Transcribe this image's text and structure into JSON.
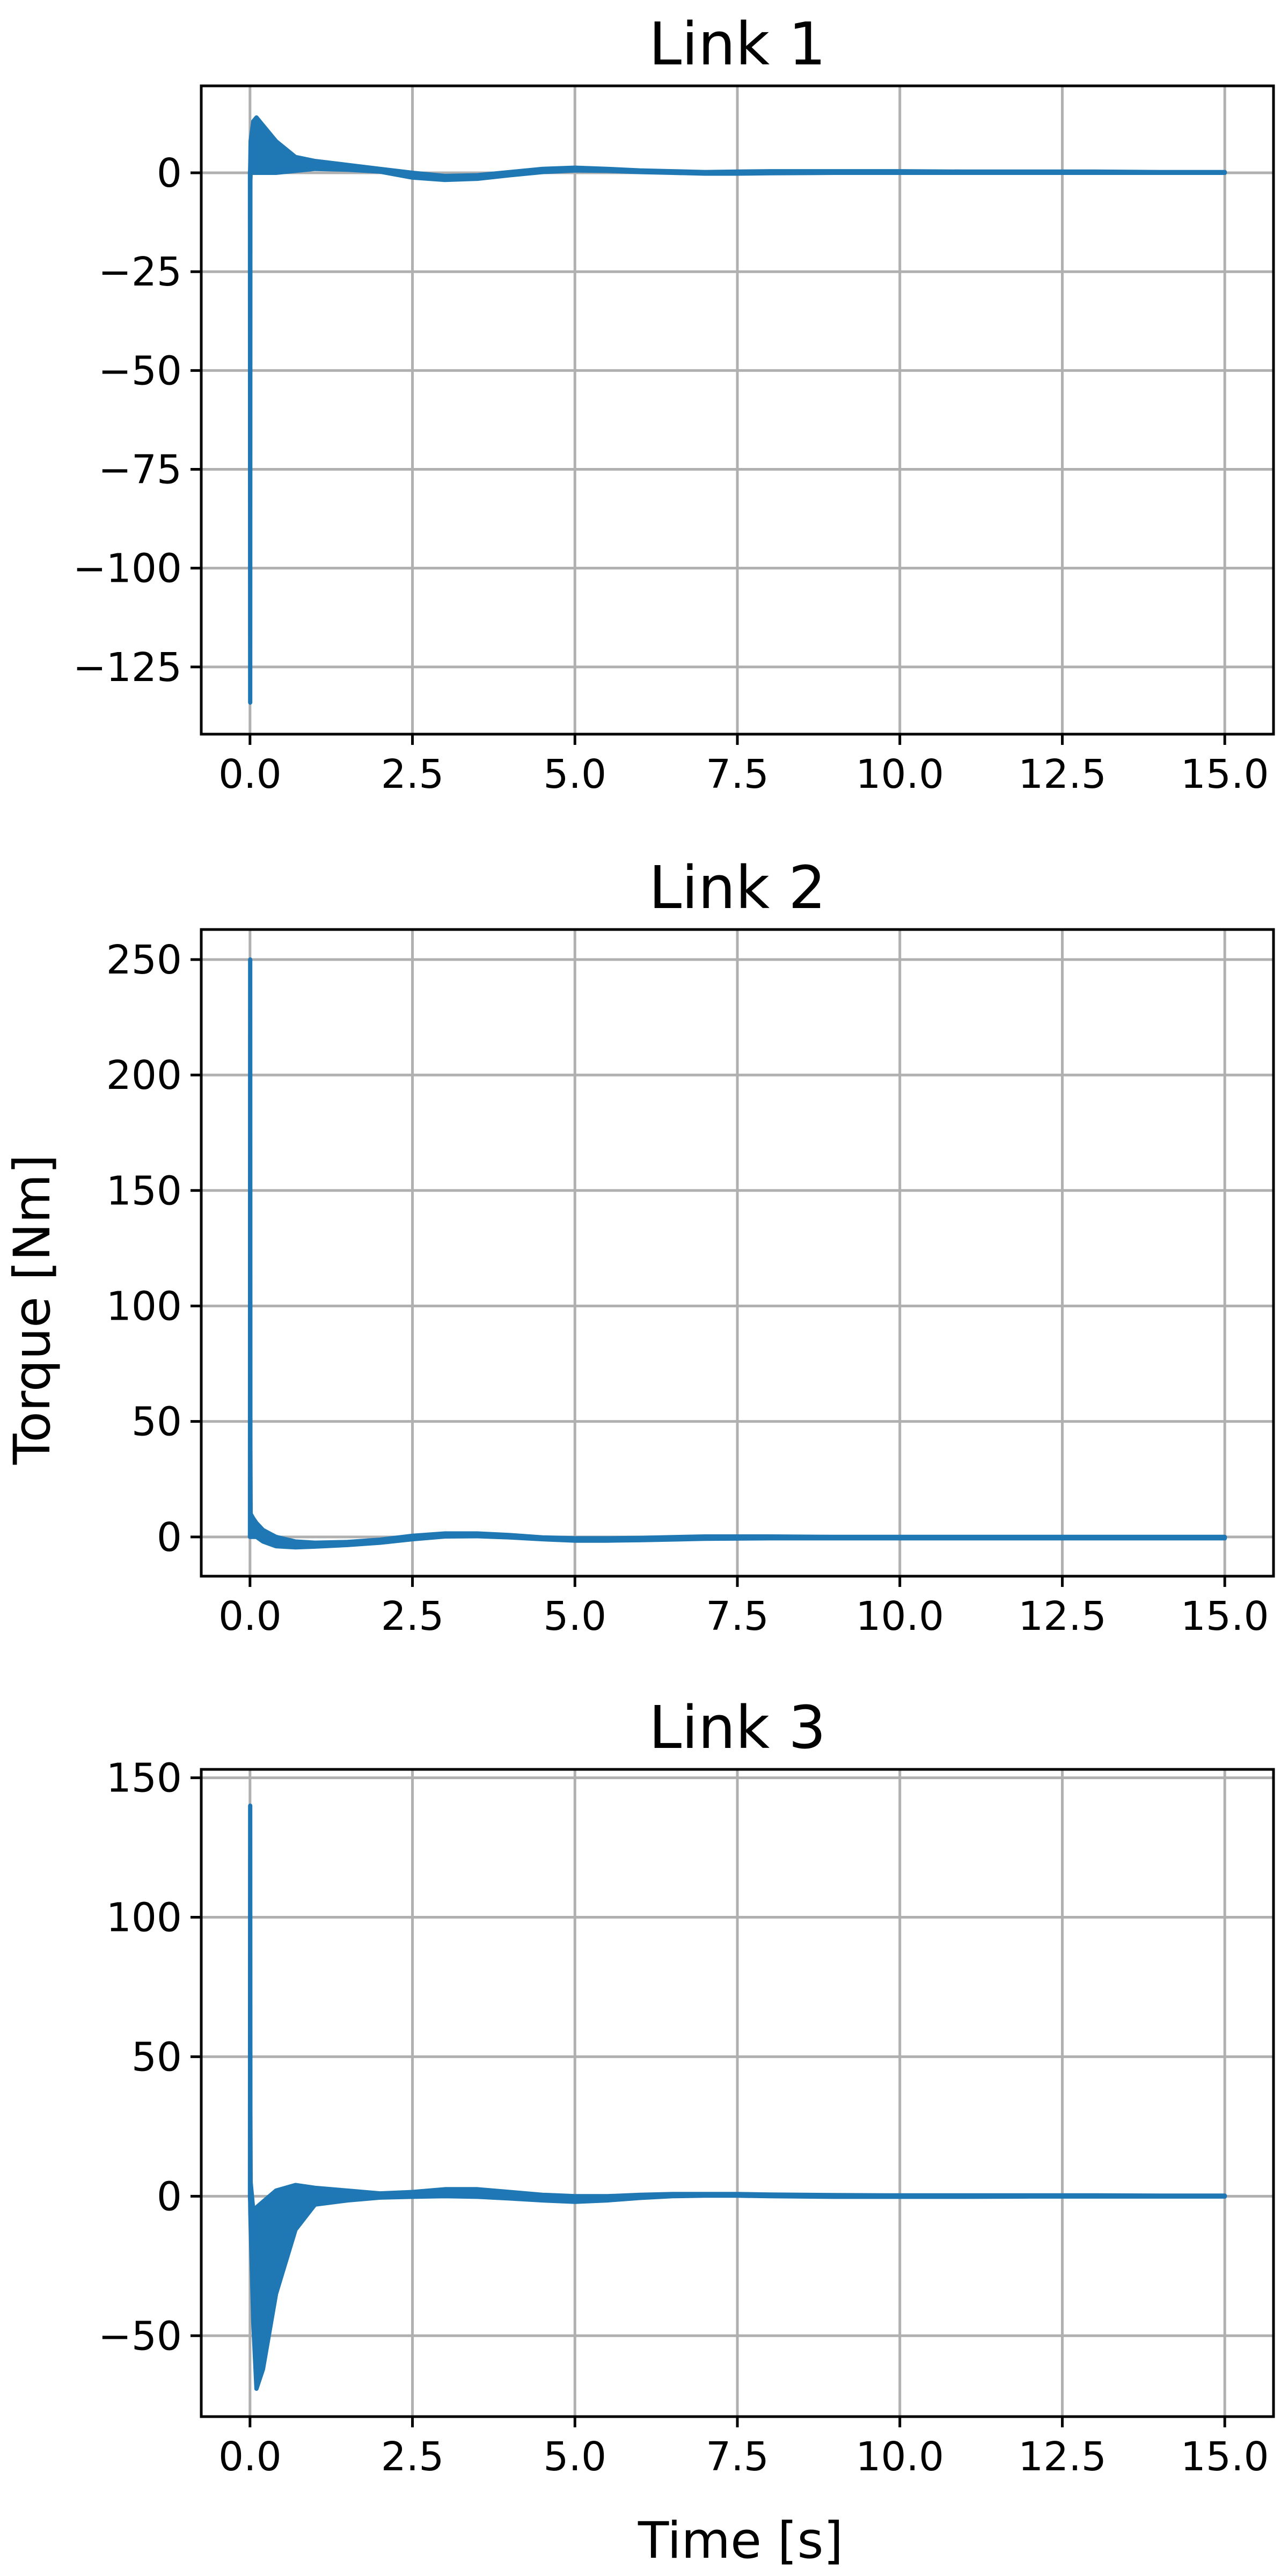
{
  "figure": {
    "xlabel": "Time [s]",
    "ylabel": "Torque [Nm]"
  },
  "chart_data": [
    {
      "type": "line",
      "title": "Link 1",
      "xlabel": "",
      "ylabel": "",
      "color": "#1f77b4",
      "grid": true,
      "xlim": [
        -0.75,
        15.75
      ],
      "ylim": [
        -142,
        22
      ],
      "xticks": [
        "0.0",
        "2.5",
        "5.0",
        "7.5",
        "10.0",
        "12.5",
        "15.0"
      ],
      "yticks": [
        "0",
        "−25",
        "−50",
        "−75",
        "−100",
        "−125"
      ],
      "series": [
        {
          "x": [
            0.0,
            0.003,
            0.006,
            0.01,
            0.05,
            0.1,
            0.2,
            0.4,
            0.7,
            1.0,
            1.5,
            2.0,
            2.5,
            3.0,
            3.5,
            4.0,
            4.5,
            5.0,
            5.5,
            6.0,
            6.5,
            7.0,
            7.5,
            8.0,
            9.0,
            10.0,
            11.0,
            12.0,
            13.0,
            14.0,
            15.0
          ],
          "upper": [
            0,
            1,
            3,
            8,
            13,
            14,
            12,
            8,
            4,
            3,
            2,
            1,
            0,
            -0.8,
            -0.6,
            0.2,
            1.0,
            1.3,
            1.0,
            0.6,
            0.4,
            0.2,
            0.3,
            0.4,
            0.4,
            0.4,
            0.3,
            0.3,
            0.3,
            0.2,
            0.2
          ],
          "lower": [
            0,
            -134,
            -2,
            0,
            0,
            0,
            0,
            0,
            0.5,
            1,
            0.8,
            0.3,
            -1.2,
            -1.8,
            -1.5,
            -0.6,
            0.2,
            0.6,
            0.5,
            0.2,
            0.0,
            -0.2,
            -0.2,
            -0.1,
            0.0,
            0.0,
            0.0,
            0.0,
            0.0,
            0.0,
            0.0
          ]
        }
      ]
    },
    {
      "type": "line",
      "title": "Link 2",
      "xlabel": "",
      "ylabel": "",
      "color": "#1f77b4",
      "grid": true,
      "xlim": [
        -0.75,
        15.75
      ],
      "ylim": [
        -17,
        263
      ],
      "xticks": [
        "0.0",
        "2.5",
        "5.0",
        "7.5",
        "10.0",
        "12.5",
        "15.0"
      ],
      "yticks": [
        "0",
        "50",
        "100",
        "150",
        "200",
        "250"
      ],
      "series": [
        {
          "x": [
            0.0,
            0.003,
            0.006,
            0.01,
            0.05,
            0.1,
            0.2,
            0.4,
            0.7,
            1.0,
            1.5,
            2.0,
            2.5,
            3.0,
            3.5,
            4.0,
            4.5,
            5.0,
            5.5,
            6.0,
            7.0,
            8.0,
            9.0,
            10.0,
            11.0,
            12.0,
            13.0,
            14.0,
            15.0
          ],
          "upper": [
            0,
            250,
            40,
            10,
            8,
            6,
            3,
            0,
            -2,
            -2.5,
            -2.2,
            -1.2,
            0.5,
            1.5,
            1.5,
            0.8,
            -0.2,
            -0.6,
            -0.6,
            -0.4,
            0.2,
            0.2,
            0.0,
            0.0,
            0.0,
            0.0,
            0.0,
            0.0,
            0.0
          ],
          "lower": [
            0,
            0,
            0,
            0,
            0,
            0,
            -2,
            -4,
            -4.5,
            -4.2,
            -3.5,
            -2.5,
            -1,
            0.2,
            0.3,
            -0.2,
            -1.0,
            -1.6,
            -1.6,
            -1.4,
            -0.8,
            -0.6,
            -0.6,
            -0.6,
            -0.6,
            -0.6,
            -0.6,
            -0.6,
            -0.6
          ]
        }
      ]
    },
    {
      "type": "line",
      "title": "Link 3",
      "xlabel": "Time [s]",
      "ylabel": "",
      "color": "#1f77b4",
      "grid": true,
      "xlim": [
        -0.75,
        15.75
      ],
      "ylim": [
        -79,
        153
      ],
      "xticks": [
        "0.0",
        "2.5",
        "5.0",
        "7.5",
        "10.0",
        "12.5",
        "15.0"
      ],
      "yticks": [
        "−50",
        "0",
        "50",
        "100",
        "150"
      ],
      "series": [
        {
          "x": [
            0.0,
            0.003,
            0.006,
            0.01,
            0.05,
            0.1,
            0.2,
            0.4,
            0.7,
            1.0,
            1.5,
            2.0,
            2.5,
            3.0,
            3.5,
            4.0,
            4.5,
            5.0,
            5.5,
            6.0,
            6.5,
            7.0,
            7.5,
            8.0,
            9.0,
            10.0,
            11.0,
            12.0,
            13.0,
            14.0,
            15.0
          ],
          "upper": [
            0,
            140,
            30,
            5,
            -5,
            -4,
            -2,
            2,
            4,
            3,
            2,
            1,
            1.5,
            2.5,
            2.5,
            1.5,
            0.5,
            0.0,
            0.0,
            0.5,
            0.8,
            0.8,
            0.8,
            0.6,
            0.4,
            0.3,
            0.3,
            0.3,
            0.3,
            0.2,
            0.2
          ],
          "lower": [
            0,
            -2,
            -6,
            -10,
            -45,
            -69,
            -62,
            -35,
            -12,
            -3,
            -1.5,
            -0.5,
            -0.2,
            0.0,
            -0.2,
            -0.8,
            -1.5,
            -2.0,
            -1.5,
            -0.6,
            0.0,
            0.2,
            0.2,
            0.0,
            -0.2,
            -0.2,
            -0.2,
            -0.1,
            -0.1,
            -0.1,
            -0.1
          ]
        }
      ]
    }
  ]
}
